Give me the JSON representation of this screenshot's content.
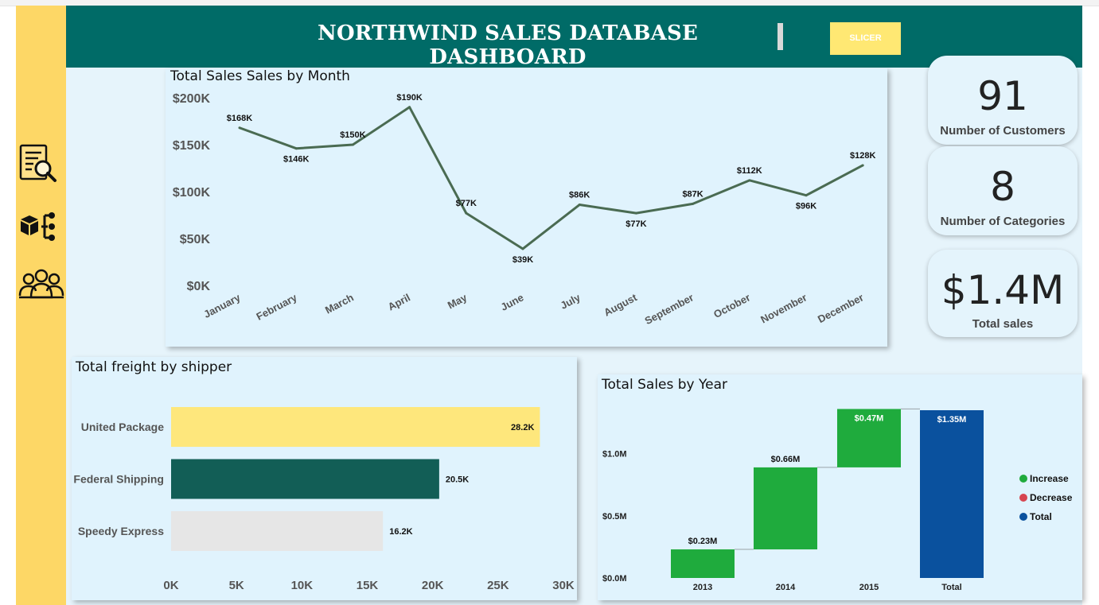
{
  "header": {
    "title": "NORTHWIND SALES DATABASE DASHBOARD",
    "slicer_label": "SLICER",
    "background": "#006b67"
  },
  "sidebar": {
    "background": "#fdd766",
    "icons": [
      "document-search-icon",
      "hierarchy-icon",
      "people-group-icon"
    ]
  },
  "kpis": {
    "customers": {
      "value": "91",
      "label": "Number of Customers"
    },
    "categories": {
      "value": "8",
      "label": "Number of Categories"
    },
    "sales": {
      "value": "$1.4M",
      "label": "Total sales"
    }
  },
  "chart_data": [
    {
      "type": "line",
      "title": "Total Sales Sales by Month",
      "categories": [
        "January",
        "February",
        "March",
        "April",
        "May",
        "June",
        "July",
        "August",
        "September",
        "October",
        "November",
        "December"
      ],
      "values": [
        168,
        146,
        150,
        190,
        77,
        39,
        86,
        77,
        87,
        112,
        96,
        128
      ],
      "value_labels": [
        "$168K",
        "$146K",
        "$150K",
        "$190K",
        "$77K",
        "$39K",
        "$86K",
        "$77K",
        "$87K",
        "$112K",
        "$96K",
        "$128K"
      ],
      "ylim": [
        0,
        200
      ],
      "yticks": [
        0,
        50,
        100,
        150,
        200
      ],
      "ytick_labels": [
        "$0K",
        "$50K",
        "$100K",
        "$150K",
        "$200K"
      ],
      "color": "#4a6b52"
    },
    {
      "type": "bar",
      "orientation": "horizontal",
      "title": "Total freight by shipper",
      "categories": [
        "United Package",
        "Federal Shipping",
        "Speedy Express"
      ],
      "values": [
        28.2,
        20.5,
        16.2
      ],
      "value_labels": [
        "28.2K",
        "20.5K",
        "16.2K"
      ],
      "colors": [
        "#fee77c",
        "#125e56",
        "#e6e6e6"
      ],
      "xlim": [
        0,
        30
      ],
      "xticks": [
        0,
        5,
        10,
        15,
        20,
        25,
        30
      ],
      "xtick_labels": [
        "0K",
        "5K",
        "10K",
        "15K",
        "20K",
        "25K",
        "30K"
      ]
    },
    {
      "type": "waterfall",
      "title": "Total Sales by Year",
      "categories": [
        "2013",
        "2014",
        "2015",
        "Total"
      ],
      "values": [
        0.23,
        0.66,
        0.47,
        1.35
      ],
      "value_labels": [
        "$0.23M",
        "$0.66M",
        "$0.47M",
        "$1.35M"
      ],
      "kinds": [
        "increase",
        "increase",
        "increase",
        "total"
      ],
      "ylim": [
        0,
        1.35
      ],
      "yticks": [
        0,
        0.5,
        1.0
      ],
      "ytick_labels": [
        "$0.0M",
        "$0.5M",
        "$1.0M"
      ],
      "legend": [
        {
          "label": "Increase",
          "color": "#1fab3d"
        },
        {
          "label": "Decrease",
          "color": "#d64550"
        },
        {
          "label": "Total",
          "color": "#0a519e"
        }
      ],
      "legend_position": "right"
    }
  ]
}
